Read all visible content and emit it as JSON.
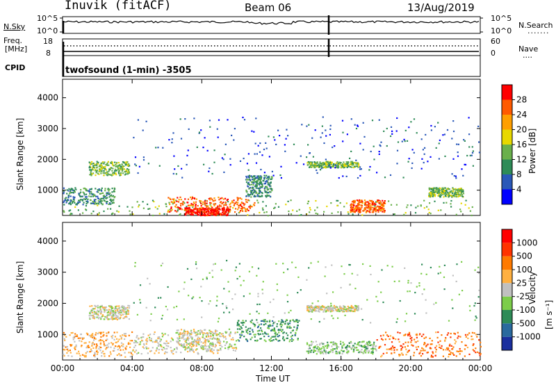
{
  "header": {
    "station": "Inuvik (fitACF)",
    "beam": "Beam 06",
    "date": "13/Aug/2019"
  },
  "top_panels": {
    "nsky_label": "N.Sky",
    "nsky_ticks": [
      "10^5",
      "10^0"
    ],
    "nsearch_label": "N.Search",
    "nsearch_ticks": [
      "10^5",
      "10^0"
    ],
    "freq_label_line1": "Freq.",
    "freq_label_line2": "[MHz]",
    "freq_ticks": [
      "18",
      "8"
    ],
    "nave_label": "Nave",
    "nave_ticks": [
      "60",
      "0"
    ],
    "cpid_label": "CPID",
    "cpid_text": "twofsound (1-min) -3505"
  },
  "chart_data": [
    {
      "type": "heatmap",
      "title": "",
      "xlabel": "Time UT",
      "ylabel": "Slant Range [km]",
      "xlim": [
        "00:00",
        "24:00"
      ],
      "ylim": [
        180,
        4600
      ],
      "y_ticks": [
        1000,
        2000,
        3000,
        4000
      ],
      "x_ticks": [
        "00:00",
        "04:00",
        "08:00",
        "12:00",
        "16:00",
        "20:00",
        "00:00"
      ],
      "colorbar": {
        "label": "Power [dB]",
        "ticks": [
          "4",
          "8",
          "12",
          "16",
          "20",
          "24",
          "28"
        ],
        "colors": [
          "#0000ff",
          "#2a58b8",
          "#2e8b57",
          "#6ab04c",
          "#e8d800",
          "#ff9f00",
          "#ff5a00",
          "#ff0000"
        ]
      },
      "scatter_regions": [
        {
          "t0": 0,
          "t1": 24,
          "r0": 200,
          "r1": 700,
          "level": 3
        },
        {
          "t0": 0,
          "t1": 3,
          "r0": 550,
          "r1": 1100,
          "level": 2
        },
        {
          "t0": 1.5,
          "t1": 3.8,
          "r0": 1500,
          "r1": 1950,
          "level": 3
        },
        {
          "t0": 6,
          "t1": 11,
          "r0": 300,
          "r1": 800,
          "level": 6
        },
        {
          "t0": 7,
          "t1": 9.5,
          "r0": 200,
          "r1": 450,
          "level": 7
        },
        {
          "t0": 10.5,
          "t1": 12,
          "r0": 800,
          "r1": 1500,
          "level": 2
        },
        {
          "t0": 14,
          "t1": 17,
          "r0": 1750,
          "r1": 1950,
          "level": 3
        },
        {
          "t0": 16.5,
          "t1": 18.5,
          "r0": 300,
          "r1": 700,
          "level": 6
        },
        {
          "t0": 21,
          "t1": 23,
          "r0": 800,
          "r1": 1100,
          "level": 3
        },
        {
          "t0": 4,
          "t1": 24,
          "r0": 1400,
          "r1": 3400,
          "level": 1
        }
      ]
    },
    {
      "type": "heatmap",
      "title": "",
      "xlabel": "Time UT",
      "ylabel": "Slant Range [km]",
      "xlim": [
        "00:00",
        "24:00"
      ],
      "ylim": [
        180,
        4600
      ],
      "y_ticks": [
        1000,
        2000,
        3000,
        4000
      ],
      "x_ticks": [
        "00:00",
        "04:00",
        "08:00",
        "12:00",
        "16:00",
        "20:00",
        "00:00"
      ],
      "colorbar": {
        "label": "Velocity",
        "units": "[m s⁻¹]",
        "ticks": [
          "1000",
          "500",
          "100",
          "25",
          "-25",
          "-100",
          "-500",
          "-1000"
        ],
        "colors": [
          "#1a2f9e",
          "#2a6a9e",
          "#2e8b57",
          "#7ccd4a",
          "#c0c0c0",
          "#ffb040",
          "#ff7a00",
          "#ff3300",
          "#ff0000"
        ]
      },
      "scatter_regions": [
        {
          "t0": 0,
          "t1": 4,
          "r0": 300,
          "r1": 1100,
          "level": 5
        },
        {
          "t0": 4,
          "t1": 9,
          "r0": 400,
          "r1": 1100,
          "level": 4
        },
        {
          "t0": 6.5,
          "t1": 10,
          "r0": 500,
          "r1": 1200,
          "level": 4
        },
        {
          "t0": 10,
          "t1": 13.5,
          "r0": 800,
          "r1": 1500,
          "level": 2
        },
        {
          "t0": 14,
          "t1": 18,
          "r0": 400,
          "r1": 800,
          "level": 3
        },
        {
          "t0": 18,
          "t1": 24,
          "r0": 300,
          "r1": 1100,
          "level": 6
        },
        {
          "t0": 1.5,
          "t1": 3.8,
          "r0": 1500,
          "r1": 1950,
          "level": 4
        },
        {
          "t0": 14,
          "t1": 17,
          "r0": 1750,
          "r1": 1950,
          "level": 4
        },
        {
          "t0": 4,
          "t1": 24,
          "r0": 1400,
          "r1": 3400,
          "level": 3
        }
      ]
    }
  ],
  "colors": {
    "frame": "#000000",
    "background": "#ffffff"
  }
}
